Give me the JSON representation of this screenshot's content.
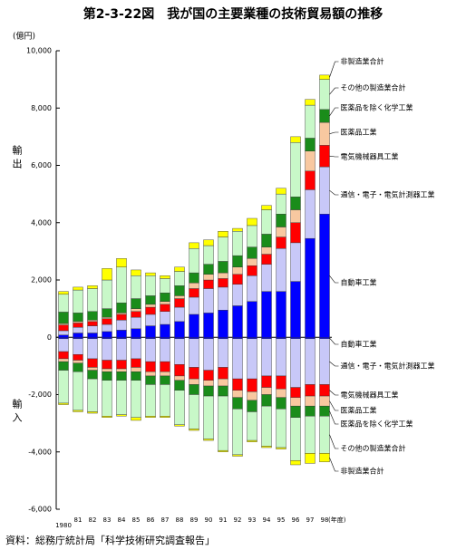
{
  "chart_data": {
    "type": "bar",
    "stacked": true,
    "title": "第2-3-22図　我が国の主要業種の技術貿易額の推移",
    "y_unit": "(億円)",
    "x_unit": "(年度)",
    "export_label": "輸出",
    "import_label": "輸入",
    "source": "資料：総務庁統計局「科学技術研究調査報告」",
    "categories": [
      "1980",
      "81",
      "82",
      "83",
      "84",
      "85",
      "86",
      "87",
      "88",
      "89",
      "90",
      "91",
      "92",
      "93",
      "94",
      "95",
      "96",
      "97",
      "98"
    ],
    "ylim": [
      -6000,
      10000
    ],
    "yticks": [
      {
        "value": -6000,
        "label": "-6,000"
      },
      {
        "value": -4000,
        "label": "-4,000"
      },
      {
        "value": -2000,
        "label": "-2,000"
      },
      0,
      {
        "value": 2000,
        "label": "2,000"
      },
      {
        "value": 4000,
        "label": "4,000"
      },
      {
        "value": 6000,
        "label": "6,000"
      },
      {
        "value": 8000,
        "label": "8,000"
      },
      {
        "value": 10000,
        "label": "10,000"
      }
    ],
    "series": [
      {
        "name": "自動車工業",
        "color": "#0000ff",
        "values": [
          80,
          150,
          150,
          200,
          250,
          300,
          400,
          450,
          550,
          800,
          850,
          950,
          1100,
          1250,
          1600,
          1600,
          1950,
          3450,
          4300
        ]
      },
      {
        "name": "通信・電子・電気計測器工業",
        "color": "#c8c8f8",
        "values": [
          150,
          200,
          250,
          250,
          350,
          400,
          400,
          450,
          500,
          600,
          850,
          800,
          750,
          900,
          950,
          1500,
          1350,
          1700,
          1650
        ]
      },
      {
        "name": "電気機械器具工業",
        "color": "#ff0000",
        "values": [
          200,
          150,
          150,
          200,
          200,
          200,
          250,
          250,
          300,
          300,
          300,
          300,
          350,
          350,
          350,
          400,
          700,
          650,
          750
        ]
      },
      {
        "name": "医薬品工業",
        "color": "#f8c8a0",
        "values": [
          50,
          50,
          50,
          50,
          50,
          100,
          100,
          100,
          100,
          200,
          200,
          200,
          250,
          250,
          250,
          350,
          450,
          700,
          800
        ]
      },
      {
        "name": "医薬品を除く化学工業",
        "color": "#1a8c1a",
        "values": [
          400,
          300,
          300,
          300,
          350,
          350,
          300,
          300,
          350,
          350,
          350,
          400,
          400,
          400,
          450,
          450,
          450,
          450,
          450
        ]
      },
      {
        "name": "その他の製造業合計",
        "color": "#c8f8c8",
        "values": [
          620,
          800,
          800,
          1000,
          1250,
          800,
          700,
          500,
          500,
          850,
          650,
          850,
          850,
          750,
          850,
          700,
          1900,
          1150,
          1050
        ]
      },
      {
        "name": "非製造業合計",
        "color": "#ffff00",
        "values": [
          100,
          100,
          100,
          400,
          300,
          200,
          100,
          100,
          150,
          200,
          200,
          200,
          100,
          250,
          150,
          200,
          200,
          200,
          150
        ]
      },
      {
        "name": "自動車工業",
        "color": "#0000ff",
        "values": [
          -50,
          -50,
          -50,
          -50,
          -50,
          -50,
          -50,
          -50,
          -50,
          -50,
          -50,
          -50,
          -50,
          -50,
          -50,
          -50,
          -50,
          -50,
          -50
        ]
      },
      {
        "name": "通信・電子・電気計測器工業",
        "color": "#c8c8f8",
        "values": [
          -450,
          -550,
          -700,
          -750,
          -750,
          -700,
          -800,
          -800,
          -900,
          -1000,
          -1100,
          -1000,
          -1400,
          -1400,
          -1300,
          -1300,
          -1700,
          -1600,
          -1600
        ]
      },
      {
        "name": "電気機械器具工業",
        "color": "#ff0000",
        "values": [
          -250,
          -200,
          -300,
          -300,
          -300,
          -300,
          -350,
          -350,
          -400,
          -400,
          -350,
          -400,
          -400,
          -450,
          -400,
          -450,
          -350,
          -400,
          -400
        ]
      },
      {
        "name": "医薬品工業",
        "color": "#f8c8a0",
        "values": [
          -100,
          -100,
          -100,
          -100,
          -100,
          -150,
          -150,
          -150,
          -150,
          -200,
          -200,
          -250,
          -250,
          -300,
          -250,
          -300,
          -300,
          -350,
          -350
        ]
      },
      {
        "name": "医薬品を除く化学工業",
        "color": "#1a8c1a",
        "values": [
          -300,
          -300,
          -300,
          -300,
          -300,
          -300,
          -300,
          -300,
          -350,
          -350,
          -350,
          -350,
          -400,
          -400,
          -400,
          -400,
          -400,
          -350,
          -350
        ]
      },
      {
        "name": "その他の製造業合計",
        "color": "#c8f8c8",
        "values": [
          -1150,
          -1350,
          -1150,
          -1250,
          -1200,
          -1300,
          -1100,
          -1100,
          -1200,
          -1200,
          -1500,
          -1900,
          -1600,
          -1000,
          -1400,
          -1350,
          -1500,
          -1300,
          -1300
        ]
      },
      {
        "name": "非製造業合計",
        "color": "#ffff00",
        "values": [
          -50,
          -50,
          -50,
          -50,
          -50,
          -100,
          -50,
          -50,
          -50,
          -50,
          -50,
          -50,
          -50,
          -50,
          -50,
          -50,
          -150,
          -350,
          -300
        ]
      }
    ]
  }
}
